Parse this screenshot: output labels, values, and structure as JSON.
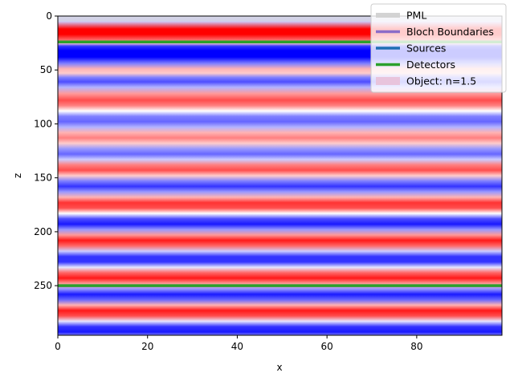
{
  "chart_data": {
    "type": "heatmap",
    "xlabel": "x",
    "ylabel": "z",
    "xlim": [
      0,
      99
    ],
    "ylim": [
      296,
      0
    ],
    "x_ticks": [
      0,
      20,
      40,
      60,
      80
    ],
    "y_ticks": [
      0,
      50,
      100,
      150,
      200,
      250
    ],
    "field_profile": {
      "description_of_axis": "field value along z, constant along x; positive = red, negative = blue",
      "z": [
        0,
        5,
        12,
        17,
        22,
        25,
        28,
        32,
        38,
        44,
        49,
        53,
        57,
        61,
        66,
        72,
        78,
        83,
        88,
        93,
        98,
        103,
        108,
        113,
        118,
        123,
        128,
        133,
        138,
        143,
        148,
        153,
        158,
        163,
        168,
        173,
        178,
        183,
        188,
        193,
        198,
        203,
        208,
        213,
        218,
        223,
        228,
        233,
        238,
        243,
        248,
        253,
        258,
        263,
        268,
        273,
        278,
        283,
        288,
        293,
        296
      ],
      "value": [
        -0.15,
        -0.2,
        1.0,
        1.0,
        0.6,
        0.2,
        -0.8,
        -1.0,
        -1.0,
        -0.5,
        0.3,
        0.2,
        -0.5,
        -0.7,
        -0.3,
        0.4,
        0.7,
        0.5,
        0.0,
        -0.5,
        -0.6,
        -0.3,
        0.3,
        0.5,
        0.2,
        -0.4,
        -0.6,
        -0.2,
        0.5,
        0.7,
        0.2,
        -0.5,
        -0.8,
        -0.4,
        0.3,
        0.8,
        0.7,
        0.0,
        -0.7,
        -0.9,
        -0.4,
        0.4,
        0.9,
        0.6,
        -0.2,
        -0.8,
        -0.8,
        -0.1,
        0.6,
        0.9,
        0.4,
        -0.4,
        -0.9,
        -0.6,
        0.3,
        0.9,
        0.7,
        -0.1,
        -0.8,
        -0.9,
        -0.5
      ]
    },
    "pml_regions": [
      {
        "z_range": [
          0,
          5
        ]
      }
    ],
    "detector_lines_z": [
      24,
      250
    ],
    "legend": {
      "placement": "top-right",
      "entries": [
        {
          "label": "PML",
          "color": "#d3d3d3",
          "style": "line-thick"
        },
        {
          "label": "Bloch Boundaries",
          "color": "#8c6cc8",
          "style": "line"
        },
        {
          "label": "Sources",
          "color": "#1f6fb4",
          "style": "line"
        },
        {
          "label": "Detectors",
          "color": "#2ca02c",
          "style": "line"
        },
        {
          "label": "Object: n=1.5",
          "color": "#e8c4dc",
          "style": "patch"
        }
      ]
    },
    "colors": {
      "positive": "#ff0000",
      "negative": "#0000ff",
      "zero": "#ffffff",
      "detector": "#2ca02c"
    }
  }
}
